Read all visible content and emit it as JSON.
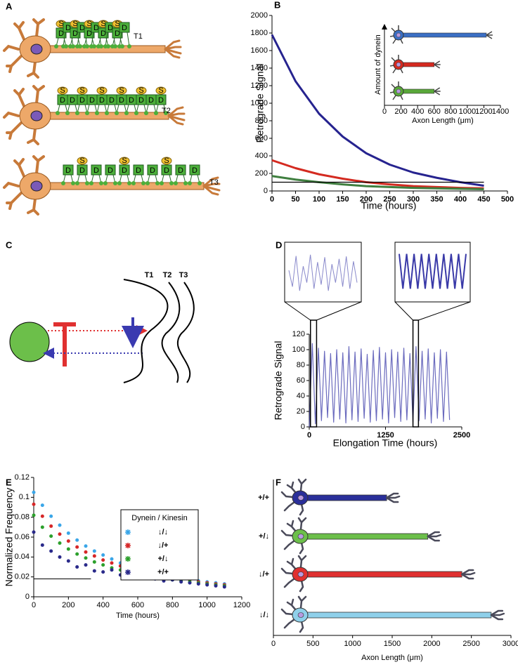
{
  "panel_labels": [
    "A",
    "B",
    "C",
    "D",
    "E",
    "F"
  ],
  "diagram_a": {
    "labels": [
      "T1",
      "T2",
      "T3"
    ],
    "motor_labels": [
      "S",
      "D"
    ]
  },
  "diagram_c": {
    "labels": [
      "T1",
      "T2",
      "T3"
    ]
  },
  "chart_data": [
    {
      "type": "line",
      "ylabel": "Retrograde Signal",
      "xlabel": "Time (hours)",
      "x": [
        0,
        50,
        100,
        150,
        200,
        250,
        300,
        350,
        400,
        450
      ],
      "series": [
        {
          "color": "#26238f",
          "values": [
            1780,
            1250,
            880,
            620,
            430,
            300,
            210,
            150,
            100,
            60
          ]
        },
        {
          "color": "#d42a20",
          "values": [
            350,
            260,
            190,
            140,
            100,
            75,
            55,
            45,
            35,
            30
          ]
        },
        {
          "color": "#3f7f3f",
          "values": [
            170,
            130,
            100,
            75,
            55,
            45,
            35,
            30,
            25,
            20
          ]
        }
      ],
      "reference_line": {
        "x": [
          0,
          450
        ],
        "y": 100
      },
      "xlim": [
        0,
        500
      ],
      "xticks": [
        0,
        50,
        100,
        150,
        200,
        250,
        300,
        350,
        400,
        450,
        500
      ],
      "ylim": [
        0,
        2000
      ],
      "yticks": [
        0,
        200,
        400,
        600,
        800,
        1000,
        1200,
        1400,
        1600,
        1800,
        2000
      ],
      "inset": {
        "type": "bar",
        "ylabel": "Amount of dynein",
        "xlabel": "Axon Length (μm)",
        "values": [
          1230,
          600,
          600
        ],
        "colors": [
          "#3b6fc4",
          "#d42a20",
          "#5aa83a"
        ],
        "xlim": [
          0,
          1400
        ],
        "xticks": [
          0,
          200,
          400,
          600,
          800,
          1000,
          1200,
          1400
        ]
      }
    },
    {
      "type": "line",
      "ylabel": "Retrograde Signal",
      "xlabel": "Elongation Time (hours)",
      "color": "#3a3aa8",
      "x": [
        0,
        50,
        100,
        150,
        200,
        250,
        300,
        350,
        400,
        450,
        500,
        550,
        600,
        650,
        700,
        750,
        800,
        850,
        900,
        950,
        1000,
        1050,
        1100,
        1150,
        1200,
        1250,
        1300,
        1350,
        1400,
        1450,
        1500,
        1550,
        1600,
        1650,
        1700,
        1750,
        1800,
        1850,
        1900,
        1950,
        2000,
        2050,
        2100,
        2150,
        2200,
        2250,
        2300
      ],
      "values": [
        0,
        108,
        4,
        102,
        8,
        98,
        12,
        95,
        6,
        100,
        10,
        96,
        5,
        104,
        9,
        97,
        7,
        101,
        11,
        94,
        6,
        99,
        8,
        103,
        10,
        96,
        5,
        100,
        12,
        97,
        7,
        102,
        9,
        95,
        6,
        104,
        8,
        98,
        10,
        101,
        5,
        96,
        11,
        100,
        7,
        97,
        9
      ],
      "zoom_windows": [
        [
          20,
          120
        ],
        [
          1700,
          1790
        ]
      ],
      "insets": [
        {
          "values": [
            60,
            20,
            95,
            10,
            70,
            30,
            98,
            15,
            80,
            25,
            92,
            10,
            75,
            30,
            88,
            20,
            94,
            15,
            82,
            30
          ]
        },
        {
          "values": [
            100,
            15,
            100,
            15,
            100,
            15,
            100,
            15,
            100,
            15,
            100,
            15,
            100,
            15,
            100,
            15,
            100,
            15,
            100
          ]
        }
      ],
      "xlim": [
        0,
        2500
      ],
      "xticks": [
        0,
        1250,
        2500
      ],
      "ylim": [
        0,
        120
      ],
      "yticks": [
        0,
        20,
        40,
        60,
        80,
        100,
        120
      ]
    },
    {
      "type": "scatter",
      "ylabel": "Normalized Frequency",
      "xlabel": "Time (hours)",
      "legend_title": "Dynein / Kinesin",
      "x": [
        0,
        50,
        100,
        150,
        200,
        250,
        300,
        350,
        400,
        450,
        500,
        550,
        600,
        650,
        700,
        750,
        800,
        850,
        900,
        950,
        1000,
        1050,
        1100
      ],
      "series": [
        {
          "name": "↓/↓",
          "color": "#3aa6e8",
          "values": [
            0.105,
            0.092,
            0.081,
            0.072,
            0.064,
            0.057,
            0.051,
            0.046,
            0.042,
            0.038,
            0.034,
            0.031,
            0.029,
            0.026,
            0.024,
            0.022,
            0.021,
            0.019,
            0.018,
            0.016,
            0.015,
            0.014,
            0.013
          ]
        },
        {
          "name": "↓/+",
          "color": "#d62728",
          "values": [
            0.093,
            0.081,
            0.071,
            0.063,
            0.056,
            0.05,
            0.045,
            0.041,
            0.037,
            0.034,
            0.031,
            0.028,
            0.026,
            0.024,
            0.022,
            0.021,
            0.019,
            0.018,
            0.017,
            0.015,
            0.014,
            0.013,
            0.012
          ]
        },
        {
          "name": "+/↓",
          "color": "#2ca02c",
          "values": [
            0.082,
            0.07,
            0.061,
            0.054,
            0.048,
            0.043,
            0.039,
            0.035,
            0.032,
            0.029,
            0.027,
            0.025,
            0.023,
            0.021,
            0.02,
            0.018,
            0.017,
            0.016,
            0.015,
            0.014,
            0.013,
            0.012,
            0.011
          ]
        },
        {
          "name": "+/+",
          "color": "#2a2a8a",
          "values": [
            0.065,
            0.052,
            0.046,
            0.04,
            0.036,
            0.03,
            0.032,
            0.026,
            0.025,
            0.027,
            0.022,
            0.021,
            0.02,
            0.019,
            0.018,
            0.016,
            0.017,
            0.015,
            0.014,
            0.013,
            0.012,
            0.011,
            0.01
          ]
        }
      ],
      "reference_line": {
        "x": [
          0,
          330
        ],
        "y": 0.018
      },
      "xlim": [
        0,
        1200
      ],
      "xticks": [
        0,
        200,
        400,
        600,
        800,
        1000,
        1200
      ],
      "ylim": [
        0,
        0.12
      ],
      "yticks": [
        0,
        0.02,
        0.04,
        0.06,
        0.08,
        0.1,
        0.12
      ]
    },
    {
      "type": "hbar",
      "xlabel": "Axon Length (μm)",
      "categories": [
        "+/+",
        "+/↓",
        "↓/+",
        "↓/↓"
      ],
      "values": [
        1430,
        1950,
        2380,
        2750
      ],
      "colors": [
        "#2a2f9a",
        "#6cbf4a",
        "#e03030",
        "#8fd0ea"
      ],
      "xlim": [
        0,
        3000
      ],
      "xticks": [
        0,
        500,
        1000,
        1500,
        2000,
        2500,
        3000
      ]
    }
  ]
}
